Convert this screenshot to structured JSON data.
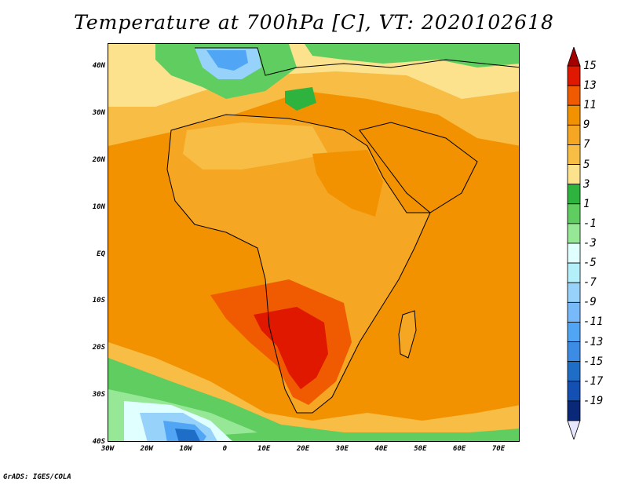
{
  "title": "Temperature at 700hPa [C], VT: 2020102618",
  "footer": "GrADS: IGES/COLA",
  "lat_labels": [
    "40N",
    "30N",
    "20N",
    "10N",
    "EQ",
    "10S",
    "20S",
    "30S",
    "40S"
  ],
  "lon_labels": [
    "30W",
    "20W",
    "10W",
    "0",
    "10E",
    "20E",
    "30E",
    "40E",
    "50E",
    "60E",
    "70E"
  ],
  "colorbar": {
    "labels": [
      "15",
      "13",
      "11",
      "9",
      "7",
      "5",
      "3",
      "1",
      "-1",
      "-3",
      "-5",
      "-7",
      "-9",
      "-11",
      "-13",
      "-15",
      "-17",
      "-19"
    ],
    "colors": [
      "#a50000",
      "#e11800",
      "#f05a00",
      "#f39200",
      "#f5a623",
      "#f7bd45",
      "#fde28e",
      "#2fb33f",
      "#5fcd5f",
      "#96e896",
      "#e0ffff",
      "#b4f0fa",
      "#96d2fa",
      "#78b9fa",
      "#50a5f5",
      "#3c8ce6",
      "#1e6ec8",
      "#1450b4",
      "#0a2878",
      "#e6e6ff"
    ]
  },
  "map_colors": {
    "ocean": "#f39200",
    "warm_land": "#f5a623",
    "hot": "#f05a00",
    "hottest": "#e11800",
    "mild": "#f7bd45",
    "cool": "#fde28e",
    "green": "#5fcd5f",
    "dark_green": "#2fb33f",
    "light_green": "#96e896",
    "pale_cyan": "#e0ffff",
    "light_blue": "#96d2fa",
    "blue": "#50a5f5",
    "dark_blue": "#1e6ec8"
  }
}
